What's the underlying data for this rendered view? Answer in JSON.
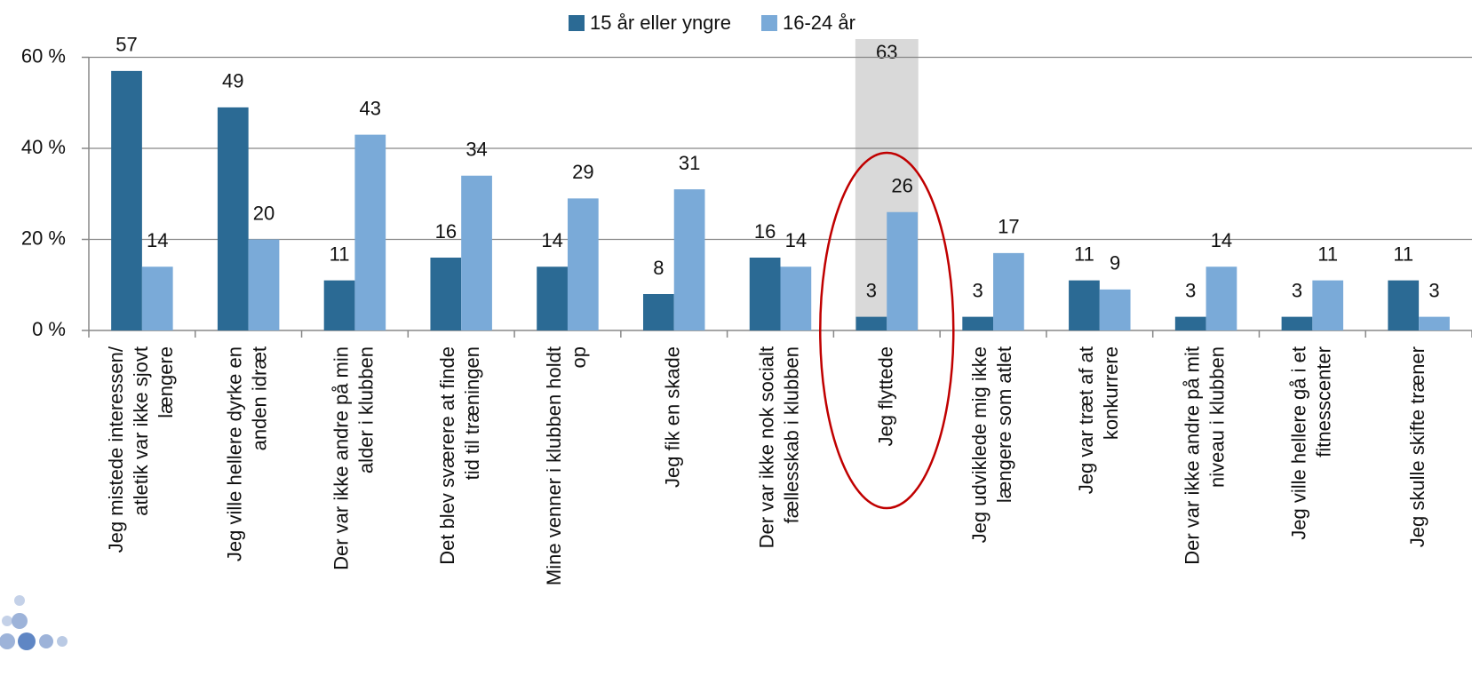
{
  "chart_data": {
    "type": "bar",
    "categories": [
      [
        "Jeg mistede interessen/",
        "atletik var ikke sjovt",
        "længere"
      ],
      [
        "Jeg ville hellere dyrke en",
        "anden idræt"
      ],
      [
        "Der var ikke andre på min",
        "alder i klubben"
      ],
      [
        "Det blev sværere at finde",
        "tid til træningen"
      ],
      [
        "Mine venner i klubben holdt",
        "op"
      ],
      [
        "Jeg fik en skade"
      ],
      [
        "Der var ikke nok socialt",
        "fællesskab i klubben"
      ],
      [
        "Jeg flyttede"
      ],
      [
        "Jeg udviklede mig ikke",
        "længere som atlet"
      ],
      [
        "Jeg var træt af at",
        "konkurrere"
      ],
      [
        "Der var ikke andre på mit",
        "niveau i klubben"
      ],
      [
        "Jeg ville hellere gå i et",
        "fitnesscenter"
      ],
      [
        "Jeg skulle skifte træner"
      ]
    ],
    "series": [
      {
        "name": "15 år eller yngre",
        "color": "#2b6a94",
        "values": [
          57,
          49,
          11,
          16,
          14,
          8,
          16,
          3,
          3,
          11,
          3,
          3,
          11
        ]
      },
      {
        "name": "16-24 år",
        "color": "#7aaad8",
        "values": [
          14,
          20,
          43,
          34,
          29,
          31,
          14,
          26,
          17,
          9,
          14,
          11,
          3
        ]
      }
    ],
    "ylim": [
      0,
      64
    ],
    "yticks": [
      {
        "value": 0,
        "label": "0 %"
      },
      {
        "value": 20,
        "label": "20 %"
      },
      {
        "value": 40,
        "label": "40 %"
      },
      {
        "value": 60,
        "label": "60 %"
      }
    ],
    "grid": true,
    "legend": "top",
    "highlight": {
      "category": 7,
      "label": "63",
      "color": "#d9d9d9"
    }
  }
}
